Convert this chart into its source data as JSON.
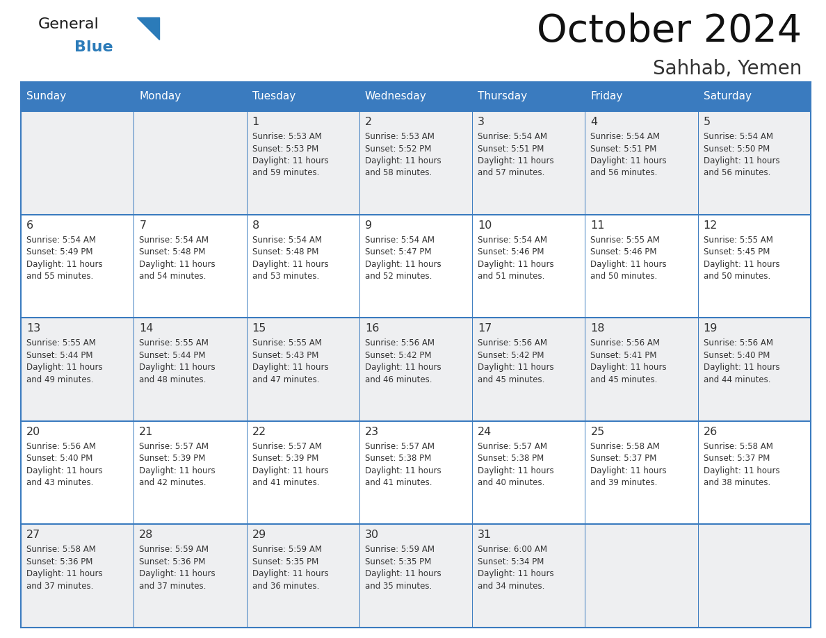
{
  "title": "October 2024",
  "subtitle": "Sahhab, Yemen",
  "header_color": "#3a7bbf",
  "header_text_color": "#ffffff",
  "cell_bg_even": "#eeeff1",
  "cell_bg_odd": "#ffffff",
  "border_color": "#3a7bbf",
  "text_color": "#333333",
  "days_of_week": [
    "Sunday",
    "Monday",
    "Tuesday",
    "Wednesday",
    "Thursday",
    "Friday",
    "Saturday"
  ],
  "weeks": [
    [
      {
        "day": "",
        "info": ""
      },
      {
        "day": "",
        "info": ""
      },
      {
        "day": "1",
        "info": "Sunrise: 5:53 AM\nSunset: 5:53 PM\nDaylight: 11 hours\nand 59 minutes."
      },
      {
        "day": "2",
        "info": "Sunrise: 5:53 AM\nSunset: 5:52 PM\nDaylight: 11 hours\nand 58 minutes."
      },
      {
        "day": "3",
        "info": "Sunrise: 5:54 AM\nSunset: 5:51 PM\nDaylight: 11 hours\nand 57 minutes."
      },
      {
        "day": "4",
        "info": "Sunrise: 5:54 AM\nSunset: 5:51 PM\nDaylight: 11 hours\nand 56 minutes."
      },
      {
        "day": "5",
        "info": "Sunrise: 5:54 AM\nSunset: 5:50 PM\nDaylight: 11 hours\nand 56 minutes."
      }
    ],
    [
      {
        "day": "6",
        "info": "Sunrise: 5:54 AM\nSunset: 5:49 PM\nDaylight: 11 hours\nand 55 minutes."
      },
      {
        "day": "7",
        "info": "Sunrise: 5:54 AM\nSunset: 5:48 PM\nDaylight: 11 hours\nand 54 minutes."
      },
      {
        "day": "8",
        "info": "Sunrise: 5:54 AM\nSunset: 5:48 PM\nDaylight: 11 hours\nand 53 minutes."
      },
      {
        "day": "9",
        "info": "Sunrise: 5:54 AM\nSunset: 5:47 PM\nDaylight: 11 hours\nand 52 minutes."
      },
      {
        "day": "10",
        "info": "Sunrise: 5:54 AM\nSunset: 5:46 PM\nDaylight: 11 hours\nand 51 minutes."
      },
      {
        "day": "11",
        "info": "Sunrise: 5:55 AM\nSunset: 5:46 PM\nDaylight: 11 hours\nand 50 minutes."
      },
      {
        "day": "12",
        "info": "Sunrise: 5:55 AM\nSunset: 5:45 PM\nDaylight: 11 hours\nand 50 minutes."
      }
    ],
    [
      {
        "day": "13",
        "info": "Sunrise: 5:55 AM\nSunset: 5:44 PM\nDaylight: 11 hours\nand 49 minutes."
      },
      {
        "day": "14",
        "info": "Sunrise: 5:55 AM\nSunset: 5:44 PM\nDaylight: 11 hours\nand 48 minutes."
      },
      {
        "day": "15",
        "info": "Sunrise: 5:55 AM\nSunset: 5:43 PM\nDaylight: 11 hours\nand 47 minutes."
      },
      {
        "day": "16",
        "info": "Sunrise: 5:56 AM\nSunset: 5:42 PM\nDaylight: 11 hours\nand 46 minutes."
      },
      {
        "day": "17",
        "info": "Sunrise: 5:56 AM\nSunset: 5:42 PM\nDaylight: 11 hours\nand 45 minutes."
      },
      {
        "day": "18",
        "info": "Sunrise: 5:56 AM\nSunset: 5:41 PM\nDaylight: 11 hours\nand 45 minutes."
      },
      {
        "day": "19",
        "info": "Sunrise: 5:56 AM\nSunset: 5:40 PM\nDaylight: 11 hours\nand 44 minutes."
      }
    ],
    [
      {
        "day": "20",
        "info": "Sunrise: 5:56 AM\nSunset: 5:40 PM\nDaylight: 11 hours\nand 43 minutes."
      },
      {
        "day": "21",
        "info": "Sunrise: 5:57 AM\nSunset: 5:39 PM\nDaylight: 11 hours\nand 42 minutes."
      },
      {
        "day": "22",
        "info": "Sunrise: 5:57 AM\nSunset: 5:39 PM\nDaylight: 11 hours\nand 41 minutes."
      },
      {
        "day": "23",
        "info": "Sunrise: 5:57 AM\nSunset: 5:38 PM\nDaylight: 11 hours\nand 41 minutes."
      },
      {
        "day": "24",
        "info": "Sunrise: 5:57 AM\nSunset: 5:38 PM\nDaylight: 11 hours\nand 40 minutes."
      },
      {
        "day": "25",
        "info": "Sunrise: 5:58 AM\nSunset: 5:37 PM\nDaylight: 11 hours\nand 39 minutes."
      },
      {
        "day": "26",
        "info": "Sunrise: 5:58 AM\nSunset: 5:37 PM\nDaylight: 11 hours\nand 38 minutes."
      }
    ],
    [
      {
        "day": "27",
        "info": "Sunrise: 5:58 AM\nSunset: 5:36 PM\nDaylight: 11 hours\nand 37 minutes."
      },
      {
        "day": "28",
        "info": "Sunrise: 5:59 AM\nSunset: 5:36 PM\nDaylight: 11 hours\nand 37 minutes."
      },
      {
        "day": "29",
        "info": "Sunrise: 5:59 AM\nSunset: 5:35 PM\nDaylight: 11 hours\nand 36 minutes."
      },
      {
        "day": "30",
        "info": "Sunrise: 5:59 AM\nSunset: 5:35 PM\nDaylight: 11 hours\nand 35 minutes."
      },
      {
        "day": "31",
        "info": "Sunrise: 6:00 AM\nSunset: 5:34 PM\nDaylight: 11 hours\nand 34 minutes."
      },
      {
        "day": "",
        "info": ""
      },
      {
        "day": "",
        "info": ""
      }
    ]
  ],
  "logo_color1": "#1a1a1a",
  "logo_color2": "#2b7bb9",
  "logo_triangle_color": "#2b7bb9",
  "fig_width": 11.88,
  "fig_height": 9.18,
  "dpi": 100
}
